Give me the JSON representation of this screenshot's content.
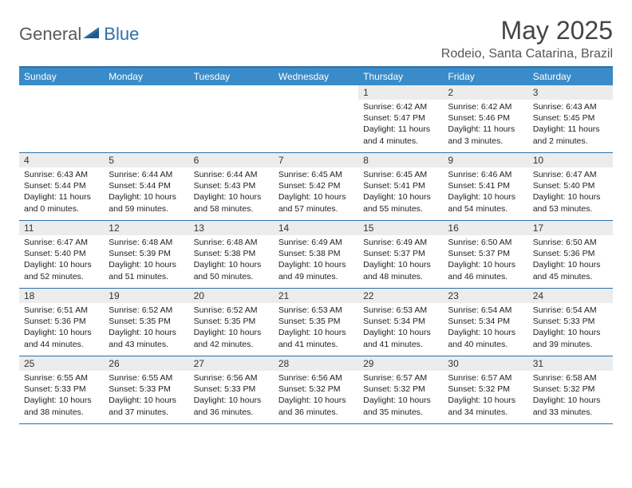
{
  "logo": {
    "general": "General",
    "blue": "Blue"
  },
  "title": "May 2025",
  "location": "Rodeio, Santa Catarina, Brazil",
  "colors": {
    "header_bg": "#3a8bc9",
    "border": "#2f6fa8",
    "daynum_bg": "#ececec",
    "text": "#222222",
    "title_color": "#444444"
  },
  "day_names": [
    "Sunday",
    "Monday",
    "Tuesday",
    "Wednesday",
    "Thursday",
    "Friday",
    "Saturday"
  ],
  "weeks": [
    [
      {
        "n": "",
        "sr": "",
        "ss": "",
        "dl": ""
      },
      {
        "n": "",
        "sr": "",
        "ss": "",
        "dl": ""
      },
      {
        "n": "",
        "sr": "",
        "ss": "",
        "dl": ""
      },
      {
        "n": "",
        "sr": "",
        "ss": "",
        "dl": ""
      },
      {
        "n": "1",
        "sr": "Sunrise: 6:42 AM",
        "ss": "Sunset: 5:47 PM",
        "dl": "Daylight: 11 hours and 4 minutes."
      },
      {
        "n": "2",
        "sr": "Sunrise: 6:42 AM",
        "ss": "Sunset: 5:46 PM",
        "dl": "Daylight: 11 hours and 3 minutes."
      },
      {
        "n": "3",
        "sr": "Sunrise: 6:43 AM",
        "ss": "Sunset: 5:45 PM",
        "dl": "Daylight: 11 hours and 2 minutes."
      }
    ],
    [
      {
        "n": "4",
        "sr": "Sunrise: 6:43 AM",
        "ss": "Sunset: 5:44 PM",
        "dl": "Daylight: 11 hours and 0 minutes."
      },
      {
        "n": "5",
        "sr": "Sunrise: 6:44 AM",
        "ss": "Sunset: 5:44 PM",
        "dl": "Daylight: 10 hours and 59 minutes."
      },
      {
        "n": "6",
        "sr": "Sunrise: 6:44 AM",
        "ss": "Sunset: 5:43 PM",
        "dl": "Daylight: 10 hours and 58 minutes."
      },
      {
        "n": "7",
        "sr": "Sunrise: 6:45 AM",
        "ss": "Sunset: 5:42 PM",
        "dl": "Daylight: 10 hours and 57 minutes."
      },
      {
        "n": "8",
        "sr": "Sunrise: 6:45 AM",
        "ss": "Sunset: 5:41 PM",
        "dl": "Daylight: 10 hours and 55 minutes."
      },
      {
        "n": "9",
        "sr": "Sunrise: 6:46 AM",
        "ss": "Sunset: 5:41 PM",
        "dl": "Daylight: 10 hours and 54 minutes."
      },
      {
        "n": "10",
        "sr": "Sunrise: 6:47 AM",
        "ss": "Sunset: 5:40 PM",
        "dl": "Daylight: 10 hours and 53 minutes."
      }
    ],
    [
      {
        "n": "11",
        "sr": "Sunrise: 6:47 AM",
        "ss": "Sunset: 5:40 PM",
        "dl": "Daylight: 10 hours and 52 minutes."
      },
      {
        "n": "12",
        "sr": "Sunrise: 6:48 AM",
        "ss": "Sunset: 5:39 PM",
        "dl": "Daylight: 10 hours and 51 minutes."
      },
      {
        "n": "13",
        "sr": "Sunrise: 6:48 AM",
        "ss": "Sunset: 5:38 PM",
        "dl": "Daylight: 10 hours and 50 minutes."
      },
      {
        "n": "14",
        "sr": "Sunrise: 6:49 AM",
        "ss": "Sunset: 5:38 PM",
        "dl": "Daylight: 10 hours and 49 minutes."
      },
      {
        "n": "15",
        "sr": "Sunrise: 6:49 AM",
        "ss": "Sunset: 5:37 PM",
        "dl": "Daylight: 10 hours and 48 minutes."
      },
      {
        "n": "16",
        "sr": "Sunrise: 6:50 AM",
        "ss": "Sunset: 5:37 PM",
        "dl": "Daylight: 10 hours and 46 minutes."
      },
      {
        "n": "17",
        "sr": "Sunrise: 6:50 AM",
        "ss": "Sunset: 5:36 PM",
        "dl": "Daylight: 10 hours and 45 minutes."
      }
    ],
    [
      {
        "n": "18",
        "sr": "Sunrise: 6:51 AM",
        "ss": "Sunset: 5:36 PM",
        "dl": "Daylight: 10 hours and 44 minutes."
      },
      {
        "n": "19",
        "sr": "Sunrise: 6:52 AM",
        "ss": "Sunset: 5:35 PM",
        "dl": "Daylight: 10 hours and 43 minutes."
      },
      {
        "n": "20",
        "sr": "Sunrise: 6:52 AM",
        "ss": "Sunset: 5:35 PM",
        "dl": "Daylight: 10 hours and 42 minutes."
      },
      {
        "n": "21",
        "sr": "Sunrise: 6:53 AM",
        "ss": "Sunset: 5:35 PM",
        "dl": "Daylight: 10 hours and 41 minutes."
      },
      {
        "n": "22",
        "sr": "Sunrise: 6:53 AM",
        "ss": "Sunset: 5:34 PM",
        "dl": "Daylight: 10 hours and 41 minutes."
      },
      {
        "n": "23",
        "sr": "Sunrise: 6:54 AM",
        "ss": "Sunset: 5:34 PM",
        "dl": "Daylight: 10 hours and 40 minutes."
      },
      {
        "n": "24",
        "sr": "Sunrise: 6:54 AM",
        "ss": "Sunset: 5:33 PM",
        "dl": "Daylight: 10 hours and 39 minutes."
      }
    ],
    [
      {
        "n": "25",
        "sr": "Sunrise: 6:55 AM",
        "ss": "Sunset: 5:33 PM",
        "dl": "Daylight: 10 hours and 38 minutes."
      },
      {
        "n": "26",
        "sr": "Sunrise: 6:55 AM",
        "ss": "Sunset: 5:33 PM",
        "dl": "Daylight: 10 hours and 37 minutes."
      },
      {
        "n": "27",
        "sr": "Sunrise: 6:56 AM",
        "ss": "Sunset: 5:33 PM",
        "dl": "Daylight: 10 hours and 36 minutes."
      },
      {
        "n": "28",
        "sr": "Sunrise: 6:56 AM",
        "ss": "Sunset: 5:32 PM",
        "dl": "Daylight: 10 hours and 36 minutes."
      },
      {
        "n": "29",
        "sr": "Sunrise: 6:57 AM",
        "ss": "Sunset: 5:32 PM",
        "dl": "Daylight: 10 hours and 35 minutes."
      },
      {
        "n": "30",
        "sr": "Sunrise: 6:57 AM",
        "ss": "Sunset: 5:32 PM",
        "dl": "Daylight: 10 hours and 34 minutes."
      },
      {
        "n": "31",
        "sr": "Sunrise: 6:58 AM",
        "ss": "Sunset: 5:32 PM",
        "dl": "Daylight: 10 hours and 33 minutes."
      }
    ]
  ]
}
